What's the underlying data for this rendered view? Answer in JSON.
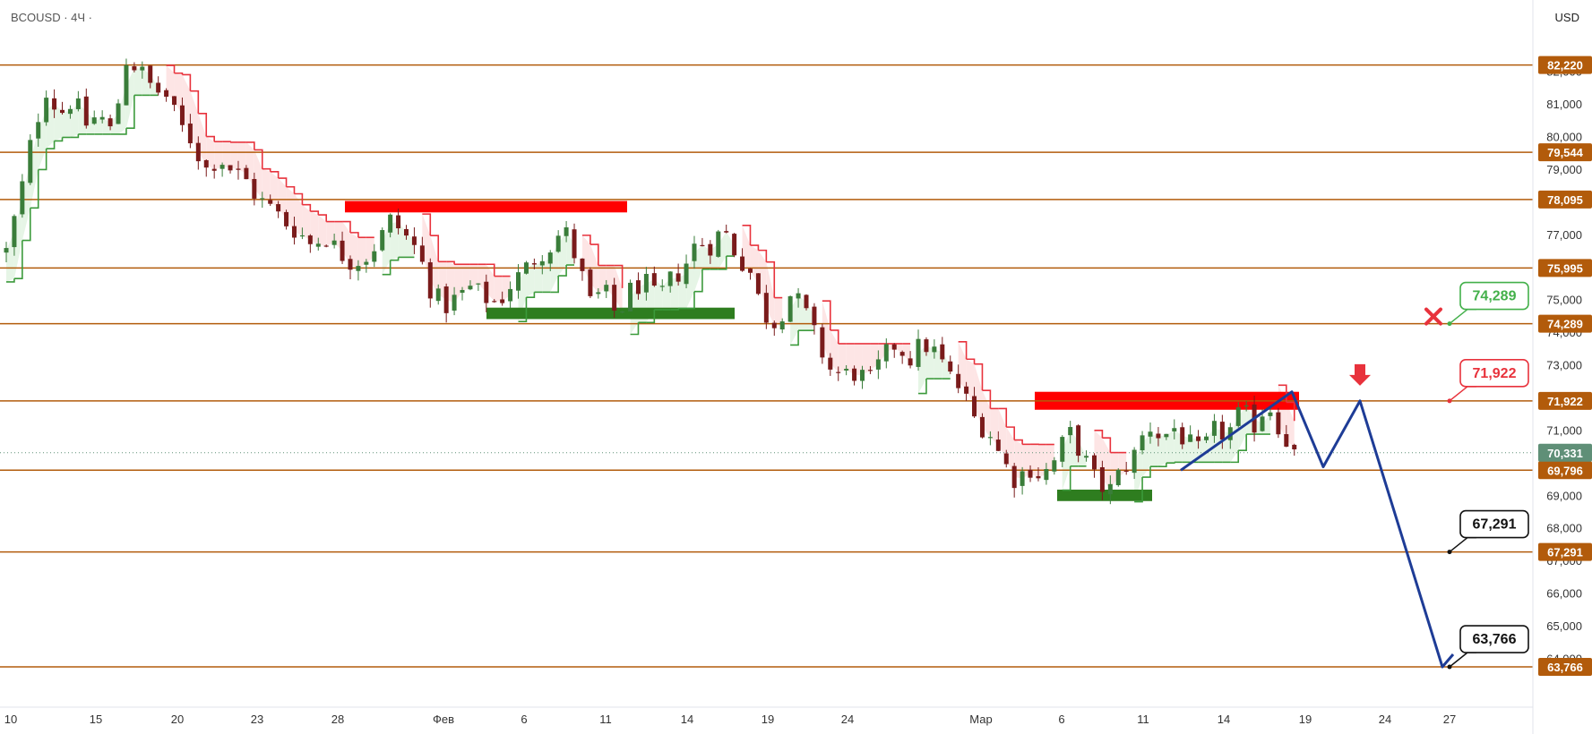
{
  "header": {
    "symbol": "BCOUSD · 4Ч ·",
    "currency": "USD"
  },
  "colors": {
    "level_line": "#b25b0b",
    "level_tag": "#b25b0b",
    "current_tag": "#5f8f77",
    "bull_candle": "#3a7d3a",
    "bear_candle": "#7a1b1b",
    "supertrend_down": "#e8323c",
    "supertrend_up": "#3b9a3b",
    "down_fill": "#fde0e0",
    "up_fill": "#e2f3e2",
    "resistance_zone": "#ff0000",
    "support_zone": "#2e7d1f",
    "projection": "#1e3c96",
    "target_green": "#43b04a",
    "target_red": "#e8323c",
    "target_black": "#111111",
    "cancel_mark": "#e8323c",
    "sell_arrow": "#e8323c"
  },
  "icons": {
    "cancel_mark": "x-mark-icon",
    "sell_signal": "arrow-down-icon"
  },
  "chart_data": {
    "type": "candlestick",
    "title": "",
    "ylim": [
      63300,
      82950
    ],
    "y_ticks": [
      "82,000",
      "81,000",
      "80,000",
      "79,000",
      "77,000",
      "75,000",
      "74,000",
      "73,000",
      "71,000",
      "70,000",
      "69,000",
      "68,000",
      "67,000",
      "66,000",
      "65,000",
      "64,000"
    ],
    "x_ticks": [
      "10",
      "15",
      "20",
      "23",
      "28",
      "Фев",
      "6",
      "11",
      "14",
      "19",
      "24",
      "Мар",
      "6",
      "11",
      "14",
      "19",
      "24",
      "27"
    ],
    "levels": [
      {
        "value": 82220,
        "label": "82,220"
      },
      {
        "value": 79544,
        "label": "79,544"
      },
      {
        "value": 78095,
        "label": "78,095"
      },
      {
        "value": 75995,
        "label": "75,995"
      },
      {
        "value": 74289,
        "label": "74,289"
      },
      {
        "value": 71922,
        "label": "71,922"
      },
      {
        "value": 69796,
        "label": "69,796"
      },
      {
        "value": 67291,
        "label": "67,291"
      },
      {
        "value": 63766,
        "label": "63,766"
      }
    ],
    "current_price": {
      "value": 70331,
      "label": "70,331"
    },
    "target_callouts": [
      {
        "label": "74,289",
        "value": 74289,
        "style": "green"
      },
      {
        "label": "71,922",
        "value": 71922,
        "style": "red"
      },
      {
        "label": "67,291",
        "value": 67291,
        "style": "black"
      },
      {
        "label": "63,766",
        "value": 63766,
        "style": "black"
      }
    ],
    "zones": [
      {
        "kind": "resistance",
        "from": 77700,
        "to": 78050,
        "period": "28 – 11 Фев"
      },
      {
        "kind": "support",
        "from": 74430,
        "to": 74780,
        "period": "4 Фев – 17 Фев"
      },
      {
        "kind": "resistance",
        "from": 71650,
        "to": 72200,
        "period": "3 Мар – 18 Мар"
      },
      {
        "kind": "support",
        "from": 68850,
        "to": 69200,
        "period": "5 Мар – 11 Мар"
      }
    ],
    "projection_path": [
      69796,
      72200,
      69900,
      71922,
      63766
    ],
    "candle_path": [
      76500,
      78100,
      80100,
      81500,
      80700,
      81200,
      80400,
      80700,
      80100,
      82400,
      82100,
      81500,
      81300,
      80400,
      79900,
      79000,
      79400,
      79000,
      78700,
      78100,
      77800,
      77400,
      77100,
      76700,
      77000,
      76500,
      76200,
      76300,
      76800,
      77500,
      77000,
      76500,
      75300,
      74800,
      75100,
      75400,
      75100,
      74900,
      75500,
      75900,
      76400,
      76700,
      77200,
      76200,
      74900,
      75300,
      74500,
      75300,
      75600,
      75000,
      75600,
      76000,
      76800,
      76700,
      77200,
      76400,
      75900,
      74600,
      74300,
      75200,
      74800,
      73800,
      72900,
      72700,
      72800,
      72500,
      73200,
      73700,
      73200,
      73700,
      73400,
      72700,
      72200,
      71300,
      71000,
      70100,
      69500,
      69900,
      69600,
      70100,
      71000,
      70300,
      69500,
      69100,
      69800,
      70300,
      71200,
      70800,
      71100,
      70600,
      70300,
      71000,
      70900,
      71600,
      71200,
      71900,
      71000,
      70300
    ]
  }
}
